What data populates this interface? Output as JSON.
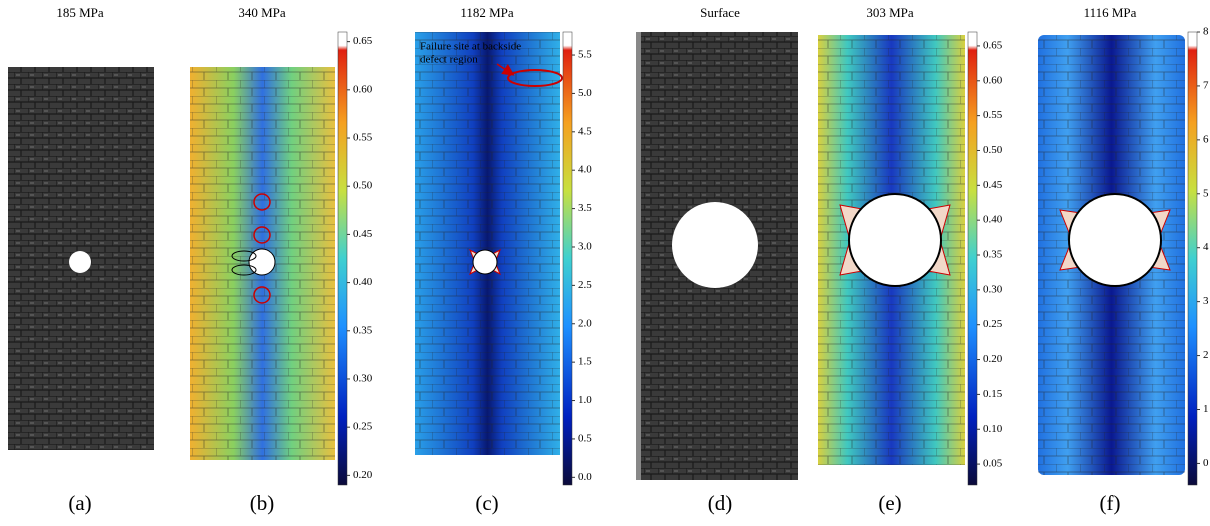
{
  "panels": [
    {
      "title": "185 MPa",
      "label": "(a)"
    },
    {
      "title": "340 MPa",
      "label": "(b)",
      "colorbar": {
        "lim": [
          0.19,
          0.66
        ],
        "ticks": [
          0.65,
          {
            "value": 0.6,
            "label": "0.60"
          },
          0.55,
          {
            "value": 0.5,
            "label": "0.50"
          },
          0.45,
          {
            "value": 0.4,
            "label": "0.40"
          },
          0.35,
          {
            "value": 0.3,
            "label": "0.30"
          },
          0.25,
          {
            "value": 0.2,
            "label": "0.20"
          }
        ]
      }
    },
    {
      "title": "1182 MPa",
      "label": "(c)",
      "annotation": [
        "Failure site at backside",
        "defect region"
      ],
      "colorbar": {
        "lim": [
          -0.1,
          5.8
        ],
        "ticks": [
          5.5,
          {
            "value": 5,
            "label": "5.0"
          },
          4.5,
          {
            "value": 4,
            "label": "4.0"
          },
          3.5,
          {
            "value": 3,
            "label": "3.0"
          },
          2.5,
          {
            "value": 2,
            "label": "2.0"
          },
          1.5,
          {
            "value": 1,
            "label": "1.0"
          },
          0.5,
          {
            "value": 0,
            "label": "0.0"
          }
        ]
      }
    },
    {
      "title": "Surface",
      "label": "(d)"
    },
    {
      "title": "303 MPa",
      "label": "(e)",
      "colorbar": {
        "lim": [
          0.02,
          0.67
        ],
        "ticks": [
          0.65,
          {
            "value": 0.6,
            "label": "0.60"
          },
          0.55,
          {
            "value": 0.5,
            "label": "0.50"
          },
          0.45,
          {
            "value": 0.4,
            "label": "0.40"
          },
          0.35,
          {
            "value": 0.3,
            "label": "0.30"
          },
          0.25,
          {
            "value": 0.2,
            "label": "0.20"
          },
          0.15,
          {
            "value": 0.1,
            "label": "0.10"
          },
          0.05
        ]
      }
    },
    {
      "title": "1116 MPa",
      "label": "(f)",
      "colorbar": {
        "lim": [
          -0.4,
          8.0
        ],
        "ticks": [
          8,
          7,
          6,
          5,
          4,
          3,
          2,
          1,
          0
        ]
      }
    }
  ]
}
